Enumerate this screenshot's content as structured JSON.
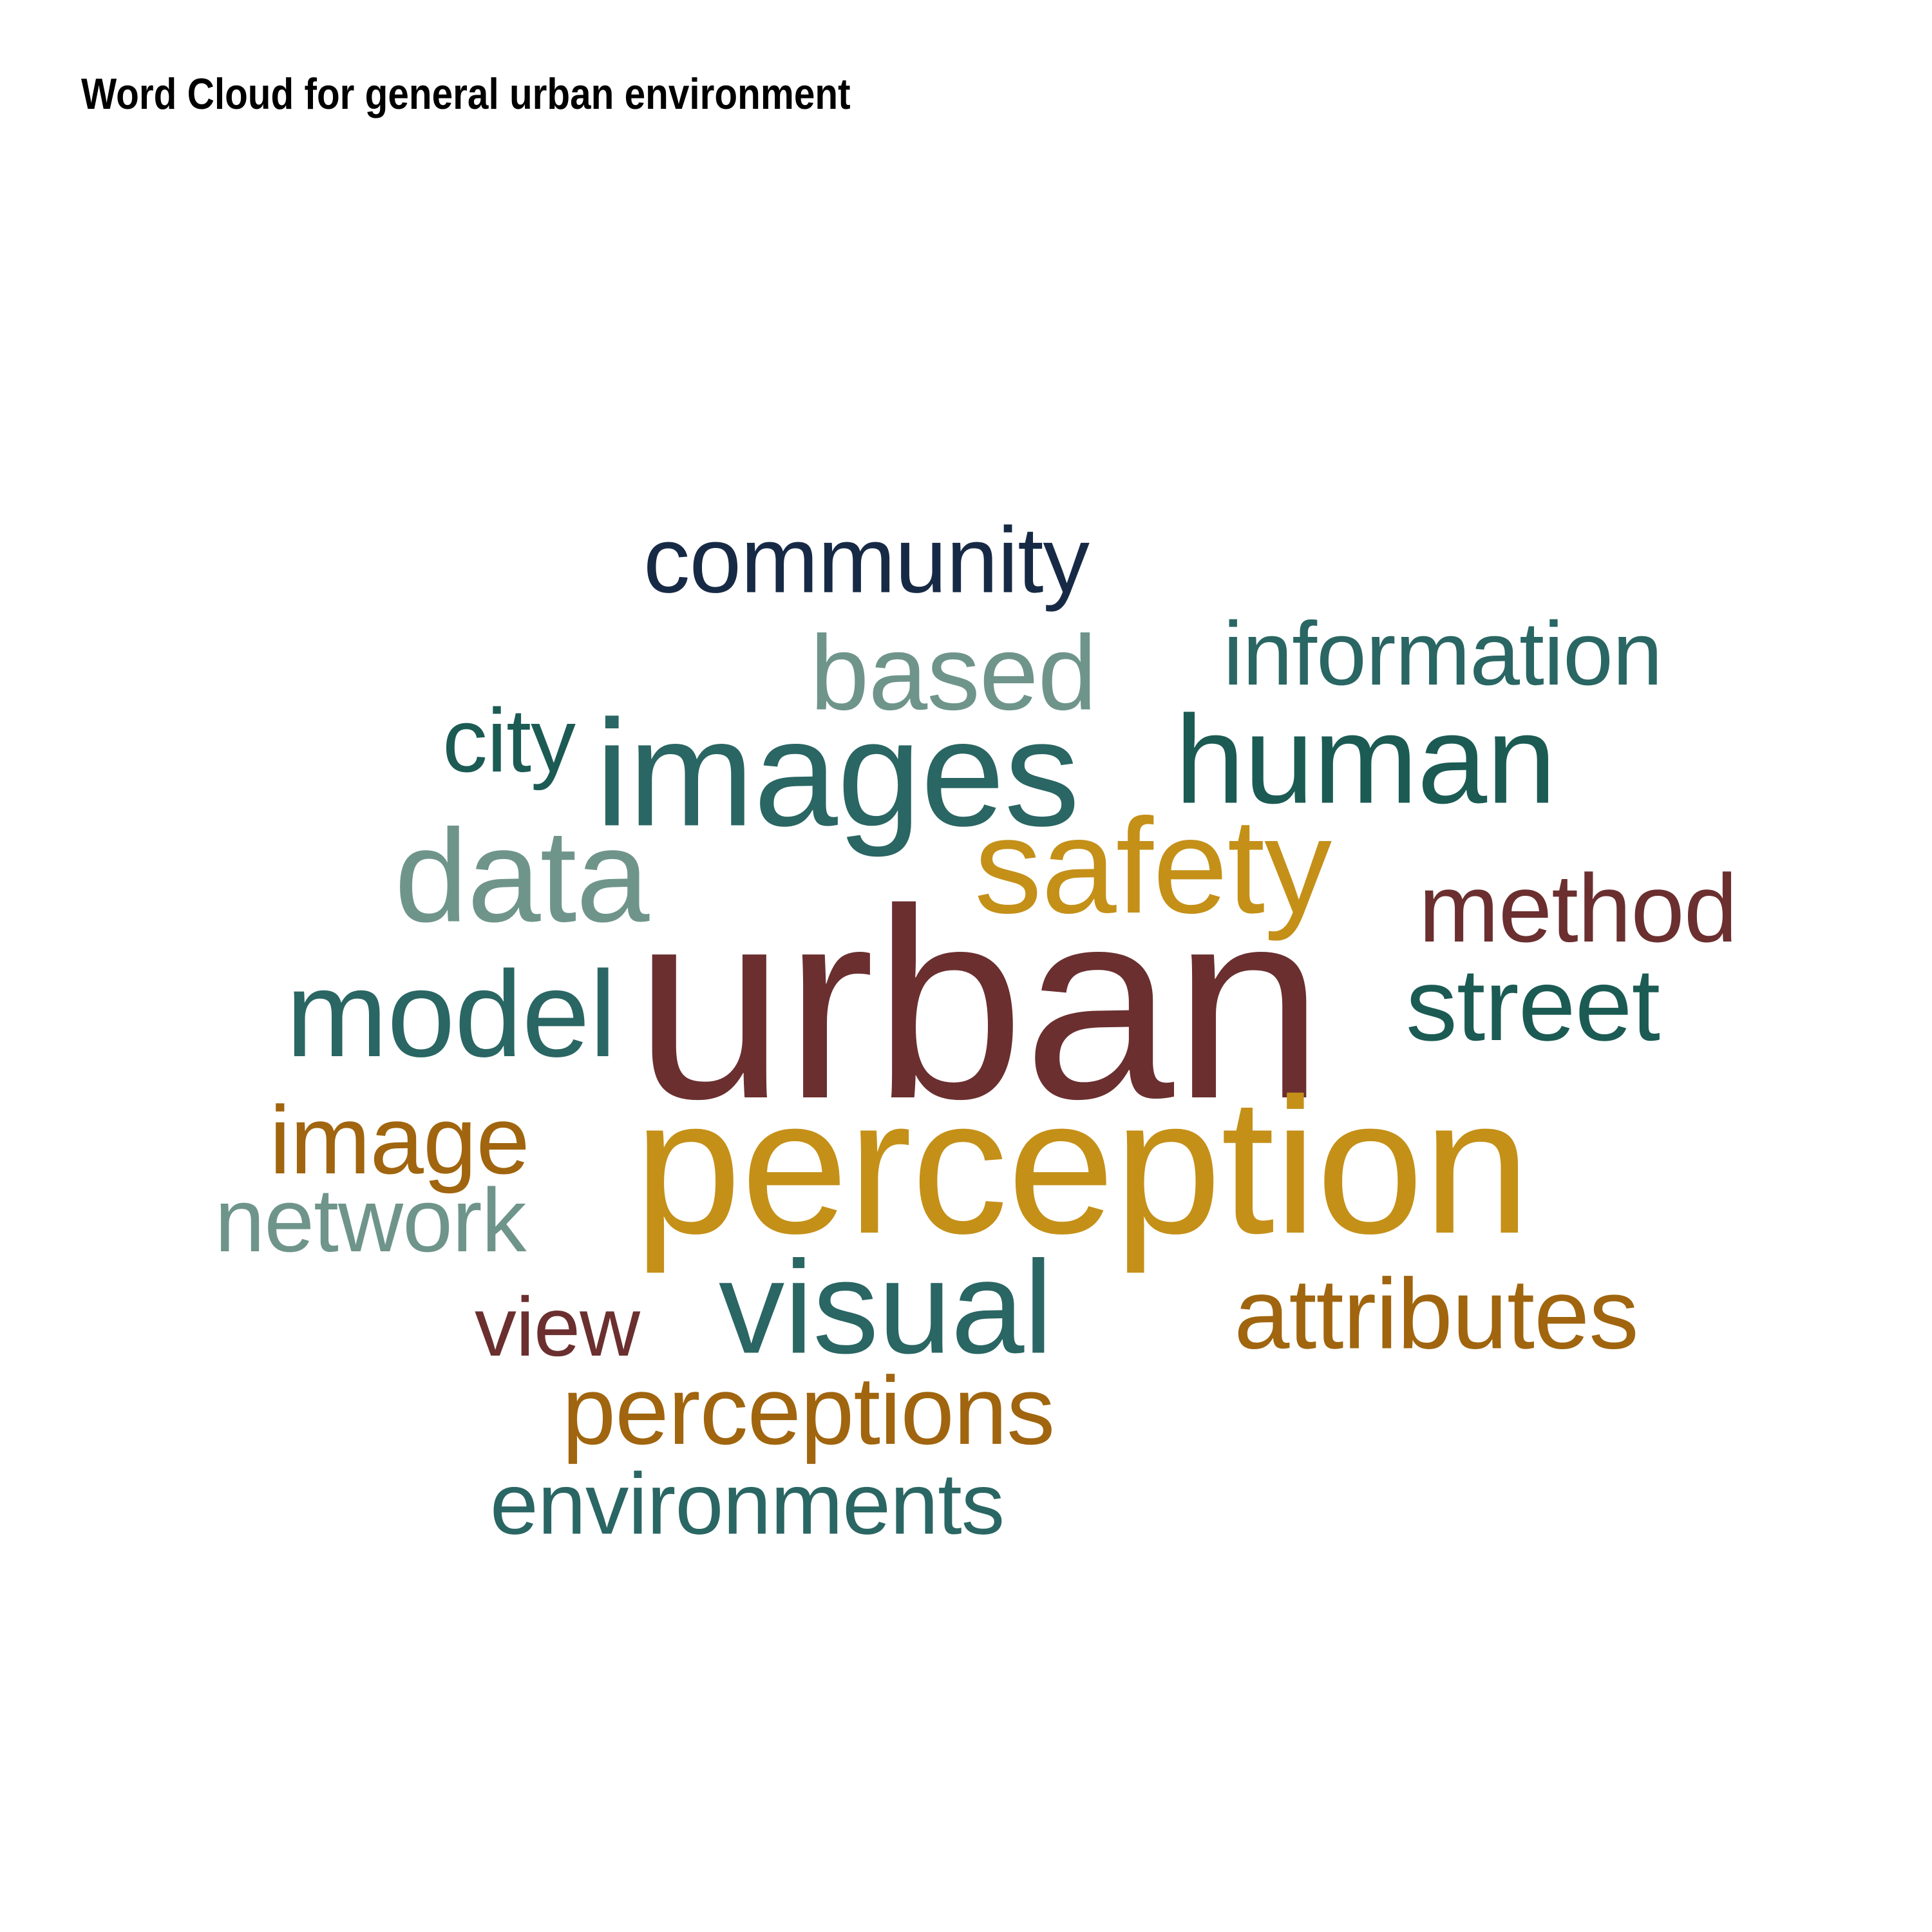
{
  "title": "Word Cloud for general urban environment",
  "colors": {
    "maroon": "#6b2f2f",
    "gold": "#c49018",
    "ochre": "#a0650e",
    "teal": "#2a6663",
    "dark_teal": "#1b5b54",
    "grey_teal": "#6f958b",
    "navy": "#172a45"
  },
  "words": [
    {
      "text": "urban",
      "color": "#6b2f2f"
    },
    {
      "text": "perception",
      "color": "#c49018"
    },
    {
      "text": "images",
      "color": "#2a6663"
    },
    {
      "text": "safety",
      "color": "#c49018"
    },
    {
      "text": "human",
      "color": "#1b5b54"
    },
    {
      "text": "visual",
      "color": "#2a6663"
    },
    {
      "text": "model",
      "color": "#2a6663"
    },
    {
      "text": "data",
      "color": "#6f958b"
    },
    {
      "text": "based",
      "color": "#6f958b"
    },
    {
      "text": "community",
      "color": "#172a45"
    },
    {
      "text": "information",
      "color": "#2a6663"
    },
    {
      "text": "street",
      "color": "#1b5b54"
    },
    {
      "text": "method",
      "color": "#6b2f2f"
    },
    {
      "text": "attributes",
      "color": "#a0650e"
    },
    {
      "text": "perceptions",
      "color": "#a0650e"
    },
    {
      "text": "image",
      "color": "#a0650e"
    },
    {
      "text": "environments",
      "color": "#2a6663"
    },
    {
      "text": "network",
      "color": "#6f958b"
    },
    {
      "text": "city",
      "color": "#1b5b54"
    },
    {
      "text": "view",
      "color": "#6b2f2f"
    }
  ]
}
